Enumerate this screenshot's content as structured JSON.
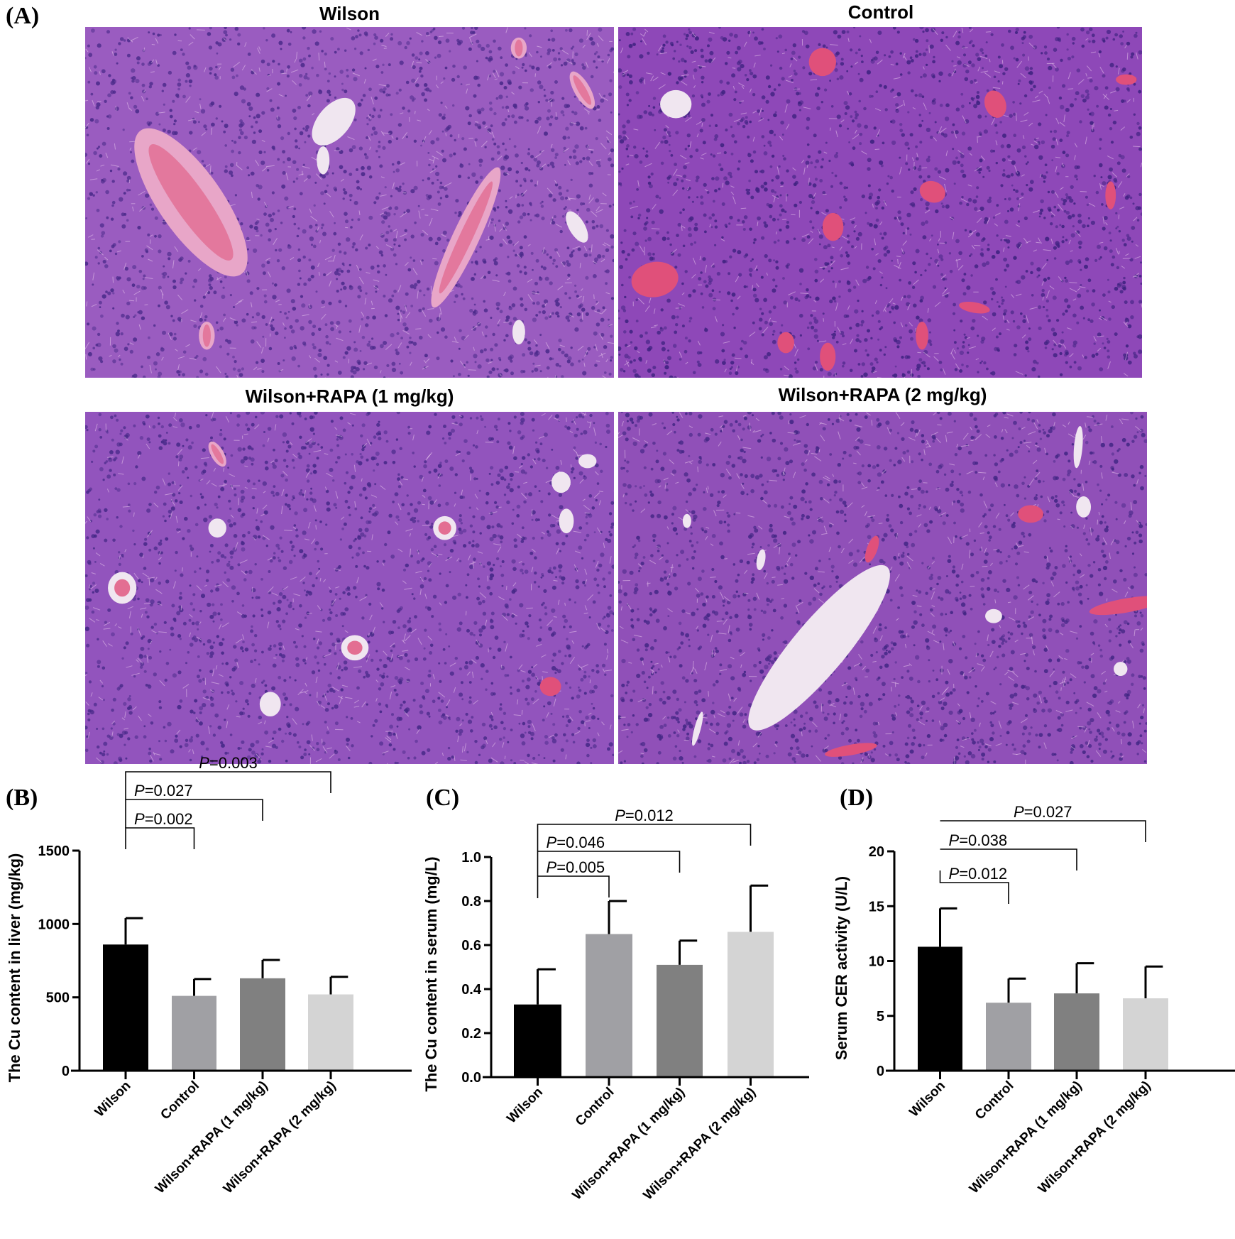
{
  "figure": {
    "panel_a": {
      "letter": "(A)",
      "images": [
        {
          "title": "Wilson",
          "tone": "#9a5cc0",
          "nuclei": "#4a2a8a"
        },
        {
          "title": "Control",
          "tone": "#8e48b8",
          "nuclei": "#3e2280"
        },
        {
          "title": "Wilson+RAPA (1 mg/kg)",
          "tone": "#9254bd",
          "nuclei": "#452887"
        },
        {
          "title": "Wilson+RAPA (2 mg/kg)",
          "tone": "#9050b8",
          "nuclei": "#422684"
        }
      ]
    },
    "panel_b_letter": "(B)",
    "panel_c_letter": "(C)",
    "panel_d_letter": "(D)"
  },
  "bar_colors": [
    "#000000",
    "#a0a0a4",
    "#808080",
    "#d4d4d4"
  ],
  "chart_data": [
    {
      "id": "B",
      "type": "bar",
      "title": "",
      "categories": [
        "Wilson",
        "Control",
        "Wilson+RAPA (1 mg/kg)",
        "Wilson+RAPA (2 mg/kg)"
      ],
      "values": [
        860,
        510,
        630,
        520
      ],
      "error_upper": [
        1040,
        625,
        755,
        640
      ],
      "xlabel": "",
      "ylabel": "The Cu content in liver (mg/kg)",
      "ylim": [
        0,
        1500
      ],
      "yticks": [
        0,
        500,
        1000,
        1500
      ],
      "ytick_labels": [
        "0",
        "500",
        "1000",
        "1500"
      ],
      "grid": false,
      "comparisons": [
        {
          "from": "Wilson",
          "to": "Control",
          "label": "P=0.002"
        },
        {
          "from": "Wilson",
          "to": "Wilson+RAPA (1 mg/kg)",
          "label": "P=0.027"
        },
        {
          "from": "Wilson",
          "to": "Wilson+RAPA (2 mg/kg)",
          "label": "P=0.003"
        }
      ]
    },
    {
      "id": "C",
      "type": "bar",
      "title": "",
      "categories": [
        "Wilson",
        "Control",
        "Wilson+RAPA (1 mg/kg)",
        "Wilson+RAPA (2 mg/kg)"
      ],
      "values": [
        0.33,
        0.65,
        0.51,
        0.66
      ],
      "error_upper": [
        0.49,
        0.8,
        0.62,
        0.87
      ],
      "xlabel": "",
      "ylabel": "The Cu content in serum (mg/L)",
      "ylim": [
        0,
        1.0
      ],
      "yticks": [
        0,
        0.2,
        0.4,
        0.6,
        0.8,
        1.0
      ],
      "ytick_labels": [
        "0.0",
        "0.2",
        "0.4",
        "0.6",
        "0.8",
        "1.0"
      ],
      "grid": false,
      "comparisons": [
        {
          "from": "Wilson",
          "to": "Control",
          "label": "P=0.005"
        },
        {
          "from": "Wilson",
          "to": "Wilson+RAPA (1 mg/kg)",
          "label": "P=0.046"
        },
        {
          "from": "Wilson",
          "to": "Wilson+RAPA (2 mg/kg)",
          "label": "P=0.012"
        }
      ]
    },
    {
      "id": "D",
      "type": "bar",
      "title": "",
      "categories": [
        "Wilson",
        "Control",
        "Wilson+RAPA (1 mg/kg)",
        "Wilson+RAPA (2 mg/kg)"
      ],
      "values": [
        11.3,
        6.2,
        7.05,
        6.6
      ],
      "error_upper": [
        14.8,
        8.4,
        9.8,
        9.5
      ],
      "xlabel": "",
      "ylabel": "Serum CER activity (U/L)",
      "ylim": [
        0,
        20
      ],
      "yticks": [
        0,
        5,
        10,
        15,
        20
      ],
      "ytick_labels": [
        "0",
        "5",
        "10",
        "15",
        "20"
      ],
      "grid": false,
      "comparisons": [
        {
          "from": "Wilson",
          "to": "Control",
          "label": "P=0.012"
        },
        {
          "from": "Wilson",
          "to": "Wilson+RAPA (1 mg/kg)",
          "label": "P=0.038"
        },
        {
          "from": "Wilson",
          "to": "Wilson+RAPA (2 mg/kg)",
          "label": "P=0.027"
        }
      ]
    }
  ]
}
